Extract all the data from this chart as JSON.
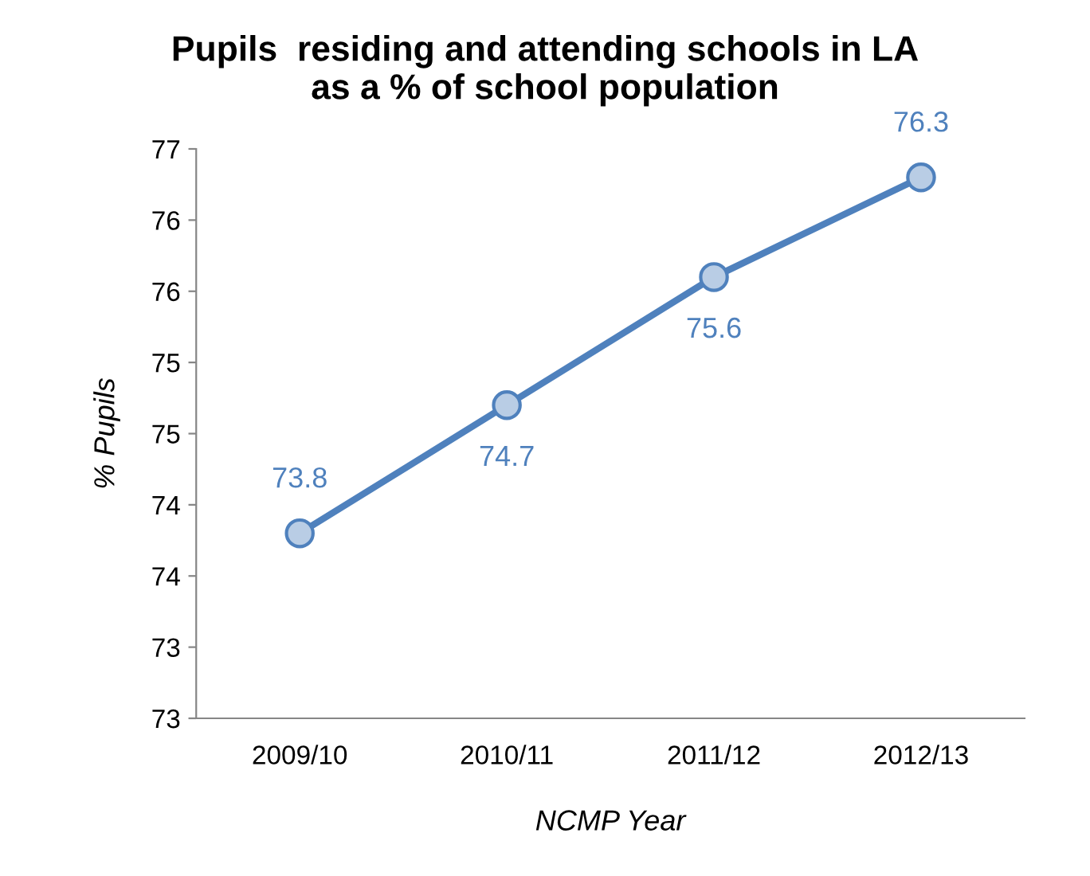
{
  "chart_data": {
    "type": "line",
    "title": "Pupils  residing and attending schools in LA\nas a % of school population",
    "xlabel": "NCMP Year",
    "ylabel": "% Pupils",
    "categories": [
      "2009/10",
      "2010/11",
      "2011/12",
      "2012/13"
    ],
    "series": [
      {
        "color": "#4f81bd",
        "values": [
          73.8,
          74.7,
          75.6,
          76.3
        ]
      }
    ],
    "ylim": [
      72.5,
      76.5
    ],
    "yticks": [
      {
        "value": 72.5,
        "label": "73"
      },
      73,
      {
        "value": 73.5,
        "label": "74"
      },
      74,
      {
        "value": 74.5,
        "label": "75"
      },
      75,
      {
        "value": 75.5,
        "label": "76"
      },
      76,
      {
        "value": 76.5,
        "label": "77"
      }
    ],
    "marker": "circle",
    "line_style": "solid",
    "grid": false,
    "legend": false,
    "data_labels": true
  }
}
